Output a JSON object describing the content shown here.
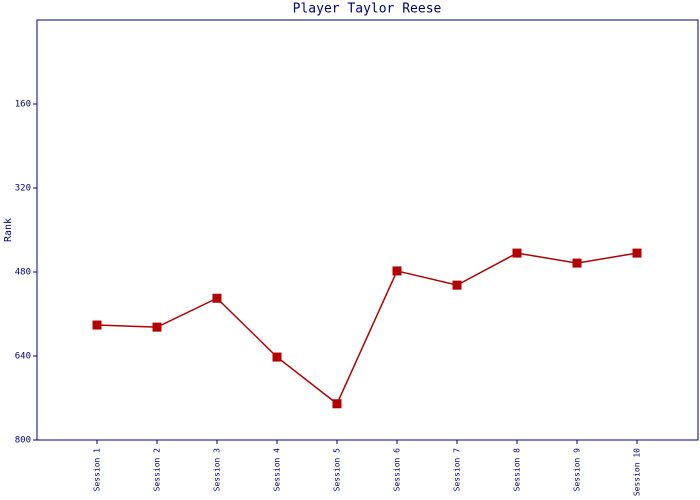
{
  "chart_data": {
    "type": "line",
    "title": "Player Taylor Reese",
    "y_label": "Rank",
    "categories": [
      "Session 1",
      "Session 2",
      "Session 3",
      "Session 4",
      "Session 5",
      "Session 6",
      "Session 7",
      "Session 8",
      "Session 9",
      "Session 10"
    ],
    "series": [
      {
        "name": "Rank",
        "color": "#b30000",
        "values": [
          581,
          585,
          530,
          642,
          731,
          478,
          505,
          444,
          463,
          444
        ]
      }
    ],
    "ylim": [
      800,
      0
    ],
    "yticks": [
      160,
      320,
      480,
      640,
      800
    ],
    "axis_color": "#000080"
  }
}
